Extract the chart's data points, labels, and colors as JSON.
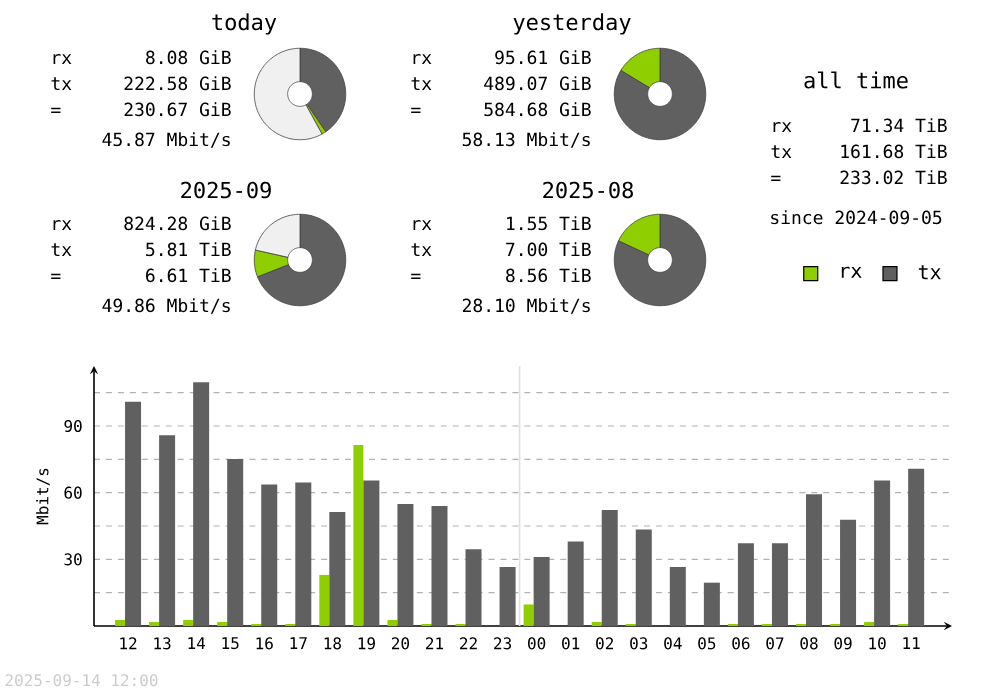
{
  "chart_data": [
    {
      "type": "donut",
      "title": "today",
      "categories": [
        null,
        null,
        null
      ],
      "values": [
        40.5,
        1.5,
        58
      ],
      "colors": [
        "#606060",
        "#8fce00",
        "#f0f0f0"
      ],
      "annotations": [
        "rx",
        "8.08 GiB",
        "tx",
        "222.58 GiB",
        "=",
        "230.67 GiB",
        "45.87 Mbit/s"
      ]
    },
    {
      "type": "donut",
      "title": "yesterday",
      "categories": [
        null,
        null
      ],
      "values": [
        83.65,
        16.35
      ],
      "colors": [
        "#606060",
        "#8fce00"
      ],
      "annotations": [
        "rx",
        "95.61 GiB",
        "tx",
        "489.07 GiB",
        "=",
        "584.68 GiB",
        "58.13 Mbit/s"
      ]
    },
    {
      "type": "other",
      "title": "all time",
      "annotations": [
        "rx",
        "71.34 TiB",
        "tx",
        "161.68 TiB",
        "=",
        "233.02 TiB",
        "since 2024-09-05"
      ]
    },
    {
      "type": "donut",
      "title": "2025-09",
      "categories": [
        null,
        null,
        null
      ],
      "values": [
        69,
        9.5,
        21.5
      ],
      "colors": [
        "#606060",
        "#8fce00",
        "#f0f0f0"
      ],
      "annotations": [
        "rx",
        "824.28 GiB",
        "tx",
        "5.81 TiB",
        "=",
        "6.61 TiB",
        "49.86 Mbit/s"
      ]
    },
    {
      "type": "donut",
      "title": "2025-08",
      "categories": [
        null,
        null
      ],
      "values": [
        81.9,
        18.1
      ],
      "colors": [
        "#606060",
        "#8fce00"
      ],
      "annotations": [
        "rx",
        "1.55 TiB",
        "tx",
        "7.00 TiB",
        "=",
        "8.56 TiB",
        "28.10 Mbit/s"
      ]
    },
    {
      "type": "bar",
      "ylabel": "Mbit/s",
      "grid": "y",
      "legend": "top right",
      "categories": [
        "12",
        "13",
        "14",
        "15",
        "16",
        "17",
        "18",
        "19",
        "20",
        "21",
        "22",
        "23",
        "00",
        "01",
        "02",
        "03",
        "04",
        "05",
        "06",
        "07",
        "08",
        "09",
        "10",
        "11"
      ],
      "series": [
        {
          "name": "rx",
          "color": "#8fce00",
          "values": [
            2.7,
            1.8,
            2.7,
            1.8,
            0.9,
            0.9,
            23,
            81.4,
            2.7,
            0.9,
            0.9,
            0,
            9.7,
            0,
            1.8,
            0.9,
            0,
            0,
            0.9,
            0.9,
            0.9,
            0.9,
            1.8,
            0.9
          ]
        },
        {
          "name": "tx",
          "color": "#606060",
          "values": [
            100.9,
            85.8,
            109.7,
            75.2,
            63.7,
            64.6,
            51.3,
            65.5,
            54.9,
            54,
            34.5,
            26.5,
            31,
            38,
            52.2,
            43.4,
            26.5,
            19.5,
            37.2,
            37.2,
            59.3,
            47.8,
            65.5,
            70.8
          ]
        }
      ],
      "ylim": [
        0,
        117
      ],
      "yticks": [
        {
          "value": 15,
          "label": null
        },
        30,
        {
          "value": 45,
          "label": null
        },
        60,
        {
          "value": 75,
          "label": null
        },
        90,
        {
          "value": 105,
          "label": null
        }
      ],
      "ref_lines": [
        {
          "axis": "x",
          "value": "00",
          "color": "#e0e0e0"
        }
      ],
      "annotations": [
        "2025-09-14 12:00"
      ]
    }
  ]
}
